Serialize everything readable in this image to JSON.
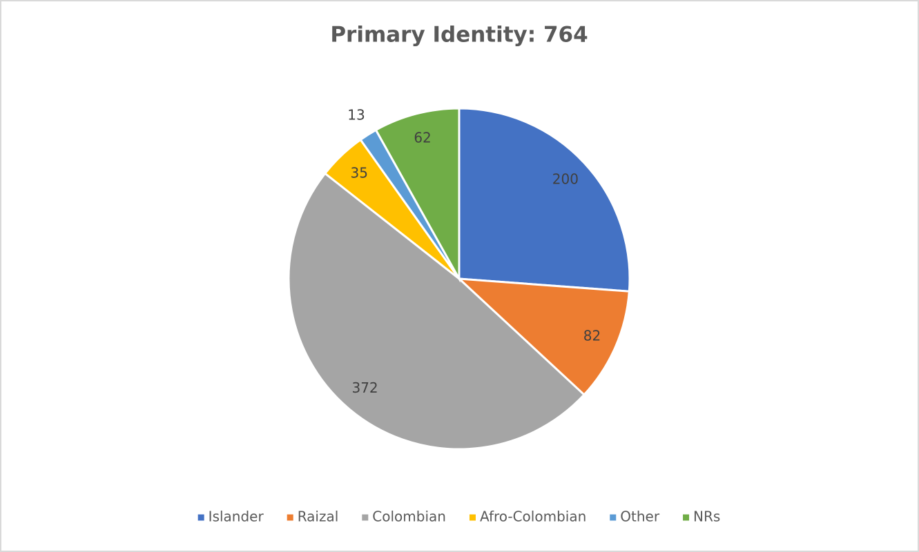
{
  "chart_data": {
    "type": "pie",
    "title": "Primary Identity: 764",
    "categories": [
      "Islander",
      "Raizal",
      "Colombian",
      "Afro-Colombian",
      "Other",
      "NRs"
    ],
    "values": [
      200,
      82,
      372,
      35,
      13,
      62
    ],
    "colors": [
      "#4472c4",
      "#ed7d31",
      "#a5a5a5",
      "#ffc000",
      "#5b9bd5",
      "#70ad47"
    ],
    "legend": "bottom"
  }
}
